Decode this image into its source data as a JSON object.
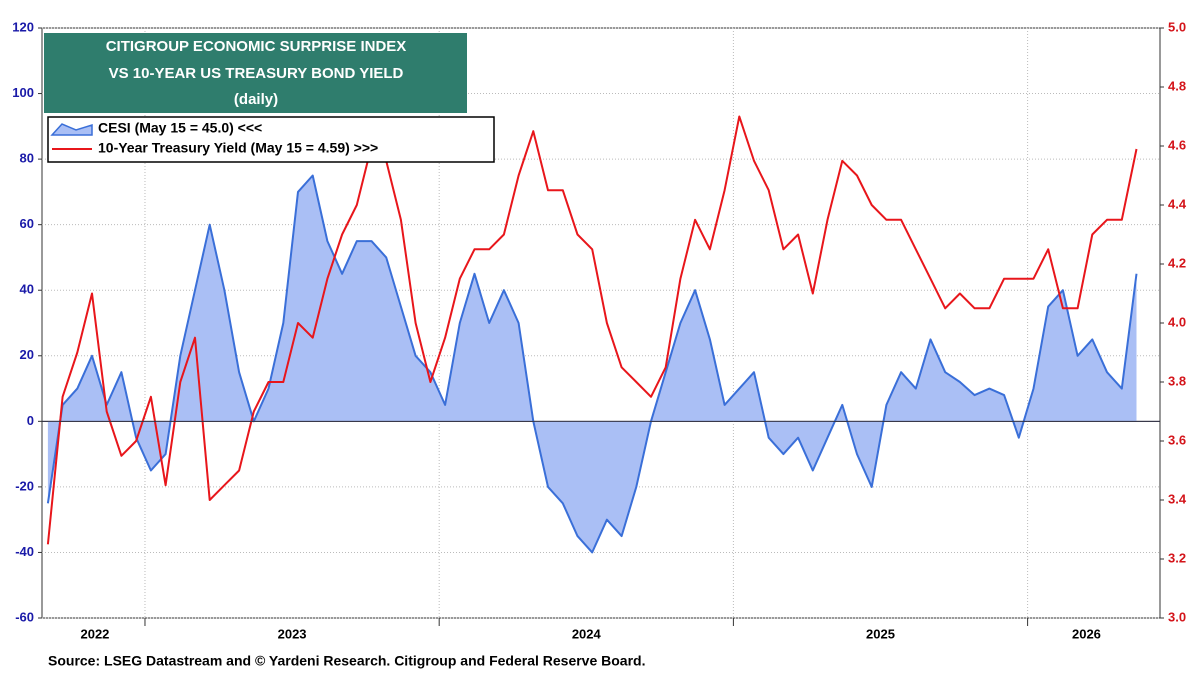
{
  "chart_data": {
    "type": "line",
    "title": [
      "CITIGROUP ECONOMIC SURPRISE INDEX",
      "VS 10-YEAR US TREASURY BOND YIELD",
      "(daily)"
    ],
    "source": "Source: LSEG Datastream and © Yardeni Research. Citigroup and Federal Reserve Board.",
    "x": [
      2022.67,
      2022.72,
      2022.77,
      2022.82,
      2022.87,
      2022.92,
      2022.97,
      2023.02,
      2023.07,
      2023.12,
      2023.17,
      2023.22,
      2023.27,
      2023.32,
      2023.37,
      2023.42,
      2023.47,
      2023.52,
      2023.57,
      2023.62,
      2023.67,
      2023.72,
      2023.77,
      2023.82,
      2023.87,
      2023.92,
      2023.97,
      2024.02,
      2024.07,
      2024.12,
      2024.17,
      2024.22,
      2024.27,
      2024.32,
      2024.37,
      2024.42,
      2024.47,
      2024.52,
      2024.57,
      2024.62,
      2024.67,
      2024.72,
      2024.77,
      2024.82,
      2024.87,
      2024.92,
      2024.97,
      2025.02,
      2025.07,
      2025.12,
      2025.17,
      2025.22,
      2025.27,
      2025.32,
      2025.37,
      2025.42,
      2025.47,
      2025.52,
      2025.57,
      2025.62,
      2025.67,
      2025.72,
      2025.77,
      2025.82,
      2025.87,
      2025.92,
      2025.97,
      2026.02,
      2026.07,
      2026.12,
      2026.17,
      2026.22,
      2026.27,
      2026.32,
      2026.37
    ],
    "xlim": [
      2022.65,
      2026.45
    ],
    "xticks": [
      {
        "value": 2022.83,
        "label": "2022"
      },
      {
        "value": 2023.5,
        "label": "2023"
      },
      {
        "value": 2024.5,
        "label": "2024"
      },
      {
        "value": 2025.5,
        "label": "2025"
      },
      {
        "value": 2026.2,
        "label": "2026"
      }
    ],
    "xminor_ticks": [
      2023,
      2024,
      2025,
      2026
    ],
    "ylim": [
      -60,
      120
    ],
    "yticks": [
      -60,
      -40,
      -20,
      0,
      20,
      40,
      60,
      80,
      100,
      120
    ],
    "y2lim": [
      3.0,
      5.0
    ],
    "y2ticks": [
      {
        "value": 3.0,
        "label": "3.0"
      },
      3.2,
      3.4,
      3.6,
      3.8,
      {
        "value": 4.0,
        "label": "4.0"
      },
      4.2,
      4.4,
      4.6,
      4.8,
      {
        "value": 5.0,
        "label": "5.0"
      }
    ],
    "grid": true,
    "legend": "top-left",
    "series": [
      {
        "name": "CESI (May 15 = 45.0) <<<",
        "color": "#3a6fd8",
        "fill": "#aabff5",
        "area": true,
        "axis": "y",
        "values": [
          -25,
          5,
          10,
          20,
          5,
          15,
          -5,
          -15,
          -10,
          20,
          40,
          60,
          40,
          15,
          0,
          10,
          30,
          70,
          75,
          55,
          45,
          55,
          55,
          50,
          35,
          20,
          15,
          5,
          30,
          45,
          30,
          40,
          30,
          0,
          -20,
          -25,
          -35,
          -40,
          -30,
          -35,
          -20,
          0,
          15,
          30,
          40,
          25,
          5,
          10,
          15,
          -5,
          -10,
          -5,
          -15,
          -5,
          5,
          -10,
          -20,
          5,
          15,
          10,
          25,
          15,
          12,
          8,
          10,
          8,
          -5,
          10,
          35,
          40,
          20,
          25,
          15,
          10,
          45
        ]
      },
      {
        "name": "10-Year Treasury Yield (May 15 = 4.59) >>>",
        "color": "#e8161b",
        "area": false,
        "axis": "y2",
        "values": [
          3.25,
          3.75,
          3.9,
          4.1,
          3.7,
          3.55,
          3.6,
          3.75,
          3.45,
          3.8,
          3.95,
          3.4,
          3.45,
          3.5,
          3.7,
          3.8,
          3.8,
          4.0,
          3.95,
          4.15,
          4.3,
          4.4,
          4.6,
          4.55,
          4.35,
          4.0,
          3.8,
          3.95,
          4.15,
          4.25,
          4.25,
          4.3,
          4.5,
          4.65,
          4.45,
          4.45,
          4.3,
          4.25,
          4.0,
          3.85,
          3.8,
          3.75,
          3.85,
          4.15,
          4.35,
          4.25,
          4.45,
          4.7,
          4.55,
          4.45,
          4.25,
          4.3,
          4.1,
          4.35,
          4.55,
          4.5,
          4.4,
          4.35,
          4.35,
          4.25,
          4.15,
          4.05,
          4.1,
          4.05,
          4.05,
          4.15,
          4.15,
          4.15,
          4.25,
          4.05,
          4.05,
          4.3,
          4.35,
          4.35,
          4.59
        ]
      }
    ]
  }
}
